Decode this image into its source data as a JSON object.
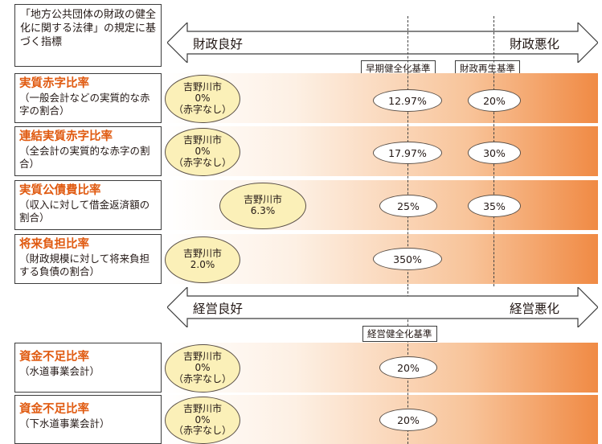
{
  "law_box": "「地方公共団体の財政の健全化に関する法律」の規定に基づく指標",
  "finance_arrow": {
    "good": "財政良好",
    "bad": "財政悪化"
  },
  "management_arrow": {
    "good": "経営良好",
    "bad": "経営悪化"
  },
  "thresholds": {
    "early": "早期健全化基準",
    "rebuild": "財政再生基準",
    "management": "経営健全化基準"
  },
  "indicators": [
    {
      "title": "実質赤字比率",
      "desc": "（一般会計などの実質的な赤字の割合）",
      "city": [
        "吉野川市",
        "0%",
        "（赤字なし）"
      ],
      "early": "12.97%",
      "rebuild": "20%"
    },
    {
      "title": "連結実質赤字比率",
      "desc": "（全会計の実質的な赤字の割合）",
      "city": [
        "吉野川市",
        "0%",
        "（赤字なし）"
      ],
      "early": "17.97%",
      "rebuild": "30%"
    },
    {
      "title": "実質公債費比率",
      "desc": "（収入に対して借金返済額の割合）",
      "city": [
        "吉野川市",
        "6.3%"
      ],
      "early": "25%",
      "rebuild": "35%"
    },
    {
      "title": "将来負担比率",
      "desc": "（財政規模に対して将来負担する負債の割合）",
      "city": [
        "吉野川市",
        "2.0%"
      ],
      "early": "350%"
    }
  ],
  "funds": [
    {
      "title": "資金不足比率",
      "desc": "（水道事業会計）",
      "city": [
        "吉野川市",
        "0%",
        "（赤字なし）"
      ],
      "standard": "20%"
    },
    {
      "title": "資金不足比率",
      "desc": "（下水道事業会計）",
      "city": [
        "吉野川市",
        "0%",
        "（赤字なし）"
      ],
      "standard": "20%"
    }
  ]
}
